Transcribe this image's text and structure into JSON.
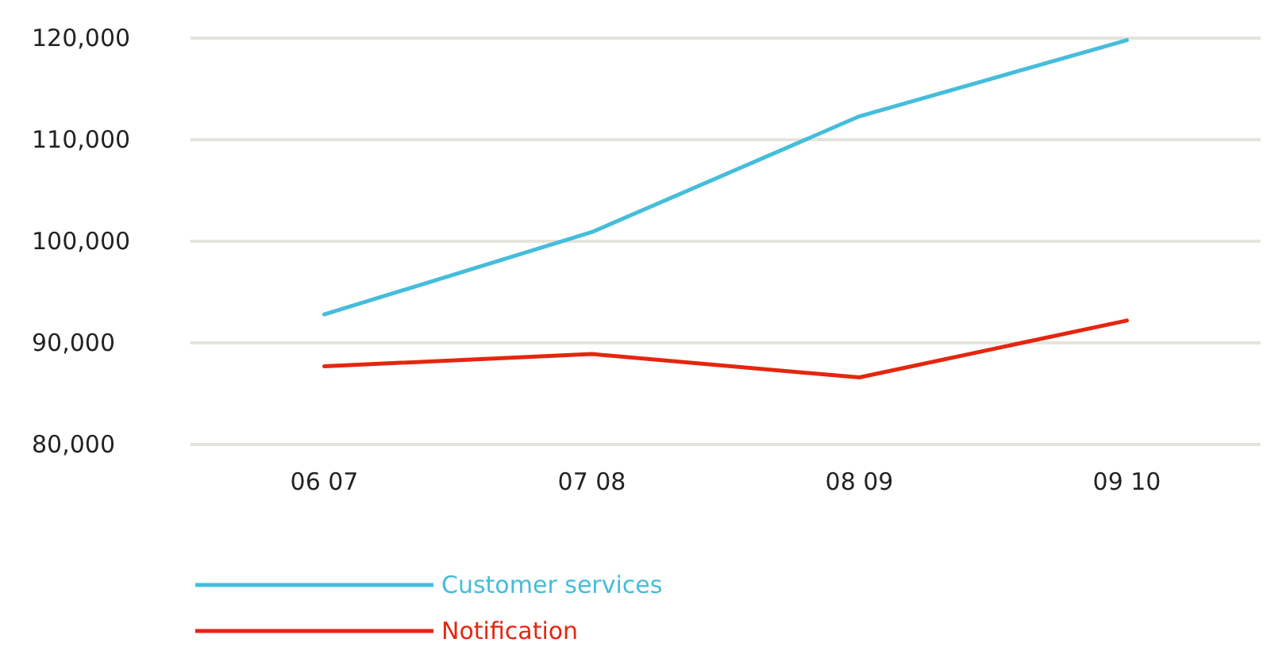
{
  "chart_data": {
    "type": "line",
    "categories": [
      "06 07",
      "07 08",
      "08 09",
      "09 10"
    ],
    "series": [
      {
        "name": "Customer services",
        "color": "#45bddb",
        "values": [
          92800,
          100900,
          112300,
          119800
        ]
      },
      {
        "name": "Notification",
        "color": "#e5260f",
        "values": [
          87700,
          88900,
          86600,
          92200
        ]
      }
    ],
    "ylim": [
      80000,
      120000
    ],
    "yticks": [
      {
        "value": 80000,
        "label": "80,000"
      },
      {
        "value": 90000,
        "label": "90,000"
      },
      {
        "value": 100000,
        "label": "100,000"
      },
      {
        "value": 110000,
        "label": "110,000"
      },
      {
        "value": 120000,
        "label": "120,000"
      }
    ],
    "grid": "y",
    "legend": "bottom left",
    "marker": "none",
    "line_style": "solid"
  }
}
